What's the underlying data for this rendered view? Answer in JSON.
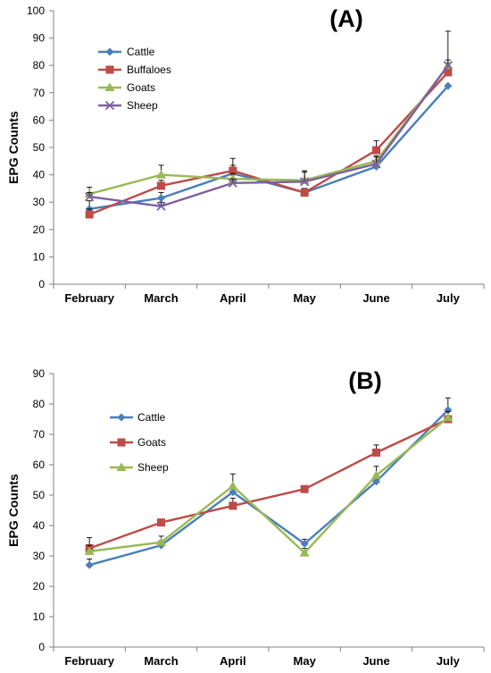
{
  "colors": {
    "cattle": "#4A7EBB",
    "buffaloes": "#BE4B48",
    "goats_a": "#98B954",
    "sheep_a": "#7D60A0",
    "goats_b": "#BE4B48",
    "sheep_b": "#98B954",
    "axis": "#808080",
    "errorbar": "#000000"
  },
  "chart_data": [
    {
      "type": "line",
      "title": "(A)",
      "xlabel": "",
      "ylabel": "EPG Counts",
      "categories": [
        "February",
        "March",
        "April",
        "May",
        "June",
        "July"
      ],
      "ylim": [
        0,
        100
      ],
      "yticks": [
        0,
        10,
        20,
        30,
        40,
        50,
        60,
        70,
        80,
        90,
        100
      ],
      "grid": false,
      "legend_position": "top-left",
      "series": [
        {
          "name": "Cattle",
          "marker": "diamond",
          "color_key": "cattle",
          "values": [
            27.5,
            31.5,
            40.5,
            33.5,
            43,
            72.5
          ],
          "errors": [
            3,
            2,
            3,
            1.5,
            1.5,
            0
          ]
        },
        {
          "name": "Buffaloes",
          "marker": "square",
          "color_key": "buffaloes",
          "values": [
            25.5,
            36,
            41.5,
            33.5,
            49,
            77.5
          ],
          "errors": [
            2,
            2,
            4.5,
            1.5,
            3.5,
            2
          ]
        },
        {
          "name": "Goats",
          "marker": "triangle",
          "color_key": "goats_a",
          "values": [
            33,
            40,
            38.5,
            38,
            45,
            80
          ],
          "errors": [
            2.5,
            3.5,
            2,
            3.5,
            2,
            12.5
          ]
        },
        {
          "name": "Sheep",
          "marker": "x",
          "color_key": "sheep_a",
          "values": [
            32,
            28.5,
            37,
            37.5,
            44,
            80
          ],
          "errors": [
            1.5,
            1.5,
            1.5,
            3.5,
            2.5,
            2
          ]
        }
      ]
    },
    {
      "type": "line",
      "title": "(B)",
      "xlabel": "",
      "ylabel": "EPG Counts",
      "categories": [
        "February",
        "March",
        "April",
        "May",
        "June",
        "July"
      ],
      "ylim": [
        0,
        90
      ],
      "yticks": [
        0,
        10,
        20,
        30,
        40,
        50,
        60,
        70,
        80,
        90
      ],
      "grid": false,
      "legend_position": "top-left",
      "series": [
        {
          "name": "Cattle",
          "marker": "diamond",
          "color_key": "cattle",
          "values": [
            27,
            33.5,
            51,
            34,
            54.5,
            78
          ],
          "errors": [
            2,
            1.5,
            1.5,
            1.5,
            1.5,
            4
          ]
        },
        {
          "name": "Goats",
          "marker": "square",
          "color_key": "goats_b",
          "values": [
            32.5,
            41,
            46.5,
            52,
            64,
            75
          ],
          "errors": [
            3.5,
            1,
            2.5,
            1,
            2.5,
            1
          ]
        },
        {
          "name": "Sheep",
          "marker": "triangle",
          "color_key": "sheep_b",
          "values": [
            31.5,
            34.5,
            53,
            31,
            56.5,
            75.5
          ],
          "errors": [
            2,
            2,
            4,
            1.5,
            3,
            2
          ]
        }
      ]
    }
  ]
}
